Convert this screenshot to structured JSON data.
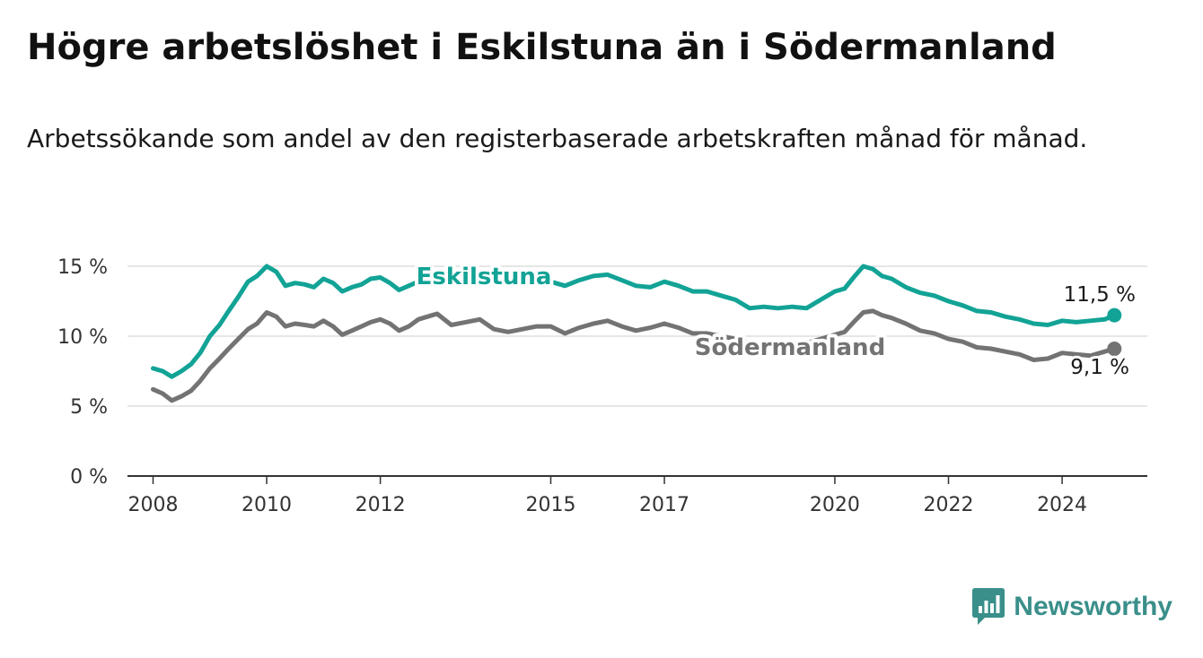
{
  "title": "Högre arbetslöshet i Eskilstuna än i Södermanland",
  "subtitle": "Arbetssökande som andel av den registerbaserade arbetskraften månad för månad.",
  "brand": {
    "name": "Newsworthy",
    "color": "#3a8f8a"
  },
  "chart_data": {
    "type": "line",
    "ylim": [
      0,
      15
    ],
    "y_ticks": [
      0,
      5,
      10,
      15
    ],
    "y_tick_labels": [
      "0 %",
      "5 %",
      "10 %",
      "15 %"
    ],
    "x_ticks": [
      2008,
      2010,
      2012,
      2015,
      2017,
      2020,
      2022,
      2024
    ],
    "x_tick_labels": [
      "2008",
      "2010",
      "2012",
      "2015",
      "2017",
      "2020",
      "2022",
      "2024"
    ],
    "grid": true,
    "series": [
      {
        "name": "Eskilstuna",
        "color": "#12a396",
        "end_label": "11,5 %",
        "points": [
          [
            2008.0,
            7.7
          ],
          [
            2008.17,
            7.5
          ],
          [
            2008.33,
            7.1
          ],
          [
            2008.5,
            7.5
          ],
          [
            2008.67,
            8.0
          ],
          [
            2008.83,
            8.8
          ],
          [
            2009.0,
            10.0
          ],
          [
            2009.17,
            10.8
          ],
          [
            2009.33,
            11.8
          ],
          [
            2009.5,
            12.8
          ],
          [
            2009.67,
            13.9
          ],
          [
            2009.83,
            14.3
          ],
          [
            2010.0,
            15.0
          ],
          [
            2010.17,
            14.6
          ],
          [
            2010.33,
            13.6
          ],
          [
            2010.5,
            13.8
          ],
          [
            2010.67,
            13.7
          ],
          [
            2010.83,
            13.5
          ],
          [
            2011.0,
            14.1
          ],
          [
            2011.17,
            13.8
          ],
          [
            2011.33,
            13.2
          ],
          [
            2011.5,
            13.5
          ],
          [
            2011.67,
            13.7
          ],
          [
            2011.83,
            14.1
          ],
          [
            2012.0,
            14.2
          ],
          [
            2012.17,
            13.8
          ],
          [
            2012.33,
            13.3
          ],
          [
            2012.5,
            13.6
          ],
          [
            2012.67,
            13.9
          ],
          [
            2012.83,
            14.1
          ],
          [
            2013.0,
            14.3
          ],
          [
            2013.25,
            14.2
          ],
          [
            2013.5,
            14.0
          ],
          [
            2013.75,
            14.1
          ],
          [
            2014.0,
            14.1
          ],
          [
            2014.25,
            14.0
          ],
          [
            2014.5,
            13.9
          ],
          [
            2014.75,
            13.8
          ],
          [
            2015.0,
            13.9
          ],
          [
            2015.25,
            13.6
          ],
          [
            2015.5,
            14.0
          ],
          [
            2015.75,
            14.3
          ],
          [
            2016.0,
            14.4
          ],
          [
            2016.25,
            14.0
          ],
          [
            2016.5,
            13.6
          ],
          [
            2016.75,
            13.5
          ],
          [
            2017.0,
            13.9
          ],
          [
            2017.25,
            13.6
          ],
          [
            2017.5,
            13.2
          ],
          [
            2017.75,
            13.2
          ],
          [
            2018.0,
            12.9
          ],
          [
            2018.25,
            12.6
          ],
          [
            2018.5,
            12.0
          ],
          [
            2018.75,
            12.1
          ],
          [
            2019.0,
            12.0
          ],
          [
            2019.25,
            12.1
          ],
          [
            2019.5,
            12.0
          ],
          [
            2019.75,
            12.6
          ],
          [
            2020.0,
            13.2
          ],
          [
            2020.17,
            13.4
          ],
          [
            2020.33,
            14.2
          ],
          [
            2020.5,
            15.0
          ],
          [
            2020.67,
            14.8
          ],
          [
            2020.83,
            14.3
          ],
          [
            2021.0,
            14.1
          ],
          [
            2021.25,
            13.5
          ],
          [
            2021.5,
            13.1
          ],
          [
            2021.75,
            12.9
          ],
          [
            2022.0,
            12.5
          ],
          [
            2022.25,
            12.2
          ],
          [
            2022.5,
            11.8
          ],
          [
            2022.75,
            11.7
          ],
          [
            2023.0,
            11.4
          ],
          [
            2023.25,
            11.2
          ],
          [
            2023.5,
            10.9
          ],
          [
            2023.75,
            10.8
          ],
          [
            2024.0,
            11.1
          ],
          [
            2024.25,
            11.0
          ],
          [
            2024.5,
            11.1
          ],
          [
            2024.75,
            11.2
          ],
          [
            2024.92,
            11.5
          ]
        ]
      },
      {
        "name": "Södermanland",
        "color": "#737373",
        "end_label": "9,1 %",
        "points": [
          [
            2008.0,
            6.2
          ],
          [
            2008.17,
            5.9
          ],
          [
            2008.33,
            5.4
          ],
          [
            2008.5,
            5.7
          ],
          [
            2008.67,
            6.1
          ],
          [
            2008.83,
            6.8
          ],
          [
            2009.0,
            7.7
          ],
          [
            2009.17,
            8.4
          ],
          [
            2009.33,
            9.1
          ],
          [
            2009.5,
            9.8
          ],
          [
            2009.67,
            10.5
          ],
          [
            2009.83,
            10.9
          ],
          [
            2010.0,
            11.7
          ],
          [
            2010.17,
            11.4
          ],
          [
            2010.33,
            10.7
          ],
          [
            2010.5,
            10.9
          ],
          [
            2010.67,
            10.8
          ],
          [
            2010.83,
            10.7
          ],
          [
            2011.0,
            11.1
          ],
          [
            2011.17,
            10.7
          ],
          [
            2011.33,
            10.1
          ],
          [
            2011.5,
            10.4
          ],
          [
            2011.67,
            10.7
          ],
          [
            2011.83,
            11.0
          ],
          [
            2012.0,
            11.2
          ],
          [
            2012.17,
            10.9
          ],
          [
            2012.33,
            10.4
          ],
          [
            2012.5,
            10.7
          ],
          [
            2012.67,
            11.2
          ],
          [
            2012.83,
            11.4
          ],
          [
            2013.0,
            11.6
          ],
          [
            2013.25,
            10.8
          ],
          [
            2013.5,
            11.0
          ],
          [
            2013.75,
            11.2
          ],
          [
            2014.0,
            10.5
          ],
          [
            2014.25,
            10.3
          ],
          [
            2014.5,
            10.5
          ],
          [
            2014.75,
            10.7
          ],
          [
            2015.0,
            10.7
          ],
          [
            2015.25,
            10.2
          ],
          [
            2015.5,
            10.6
          ],
          [
            2015.75,
            10.9
          ],
          [
            2016.0,
            11.1
          ],
          [
            2016.25,
            10.7
          ],
          [
            2016.5,
            10.4
          ],
          [
            2016.75,
            10.6
          ],
          [
            2017.0,
            10.9
          ],
          [
            2017.25,
            10.6
          ],
          [
            2017.5,
            10.2
          ],
          [
            2017.75,
            10.2
          ],
          [
            2018.0,
            10.0
          ],
          [
            2018.25,
            9.8
          ],
          [
            2018.5,
            9.5
          ],
          [
            2018.75,
            9.5
          ],
          [
            2019.0,
            9.5
          ],
          [
            2019.25,
            9.5
          ],
          [
            2019.5,
            9.5
          ],
          [
            2019.75,
            9.8
          ],
          [
            2020.0,
            10.1
          ],
          [
            2020.17,
            10.3
          ],
          [
            2020.33,
            11.0
          ],
          [
            2020.5,
            11.7
          ],
          [
            2020.67,
            11.8
          ],
          [
            2020.83,
            11.5
          ],
          [
            2021.0,
            11.3
          ],
          [
            2021.25,
            10.9
          ],
          [
            2021.5,
            10.4
          ],
          [
            2021.75,
            10.2
          ],
          [
            2022.0,
            9.8
          ],
          [
            2022.25,
            9.6
          ],
          [
            2022.5,
            9.2
          ],
          [
            2022.75,
            9.1
          ],
          [
            2023.0,
            8.9
          ],
          [
            2023.25,
            8.7
          ],
          [
            2023.5,
            8.3
          ],
          [
            2023.75,
            8.4
          ],
          [
            2024.0,
            8.8
          ],
          [
            2024.25,
            8.7
          ],
          [
            2024.5,
            8.6
          ],
          [
            2024.75,
            8.9
          ],
          [
            2024.92,
            9.1
          ]
        ]
      }
    ]
  }
}
